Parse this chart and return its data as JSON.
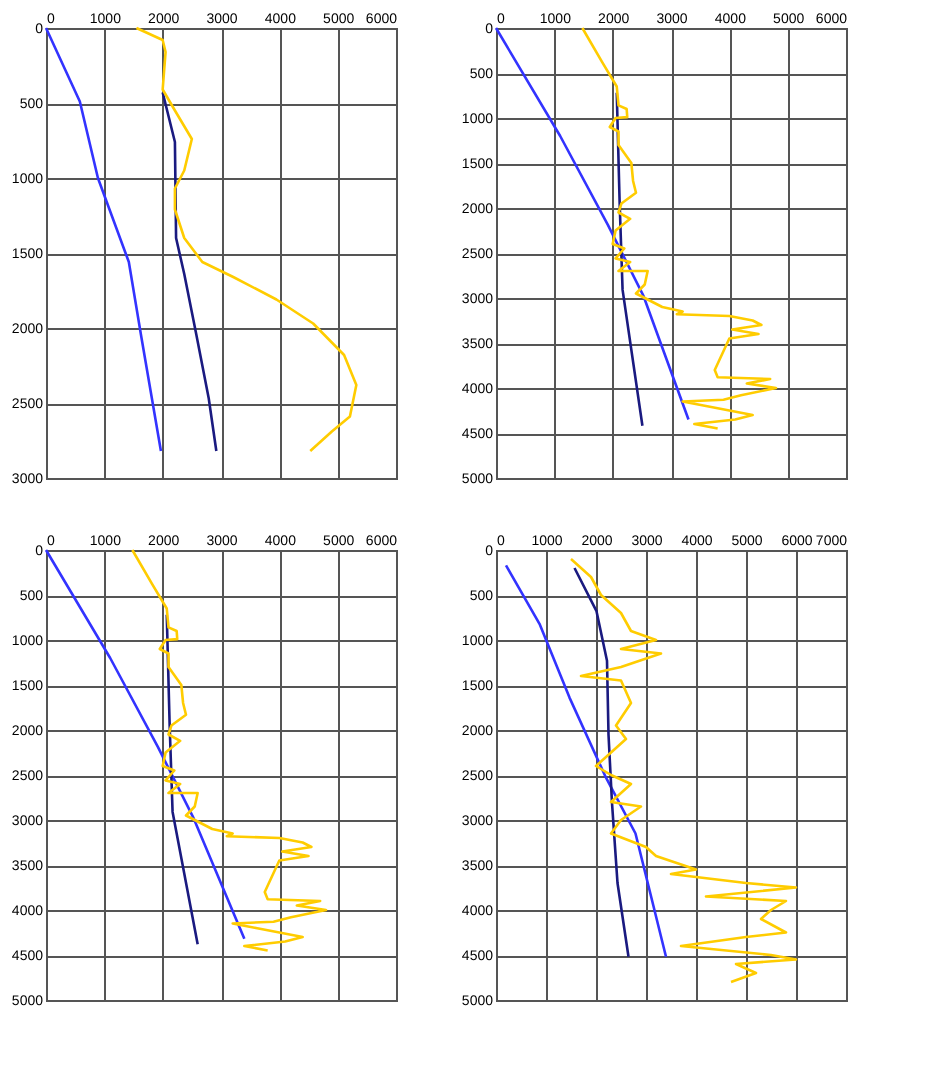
{
  "chart_data": [
    {
      "type": "line",
      "xlim": [
        0,
        6000
      ],
      "ylim": [
        3000,
        0
      ],
      "xticks": [
        0,
        1000,
        2000,
        3000,
        4000,
        5000,
        6000
      ],
      "yticks": [
        0,
        500,
        1000,
        1500,
        2000,
        2500,
        3000
      ],
      "grid": true,
      "series": [
        {
          "color": "#3333ff",
          "x": [
            0,
            580,
            890,
            1420,
            1630,
            1970
          ],
          "values": [
            0,
            490,
            1000,
            1560,
            2050,
            2820
          ]
        },
        {
          "color": "#1a1a80",
          "x": [
            2000,
            2210,
            2230,
            2370,
            2580,
            2790,
            2920
          ],
          "values": [
            430,
            760,
            1400,
            1640,
            2050,
            2470,
            2820
          ]
        },
        {
          "color": "#ffcc00",
          "x": [
            1550,
            2000,
            2050,
            2000,
            2210,
            2500,
            2370,
            2210,
            2210,
            2370,
            2680,
            3210,
            3950,
            4580,
            5110,
            5320,
            5210,
            4900,
            4530
          ],
          "values": [
            0,
            80,
            160,
            410,
            550,
            740,
            950,
            1070,
            1210,
            1400,
            1560,
            1660,
            1810,
            1970,
            2180,
            2380,
            2590,
            2690,
            2820
          ]
        }
      ]
    },
    {
      "type": "line",
      "xlim": [
        0,
        6000
      ],
      "ylim": [
        5000,
        0
      ],
      "xticks": [
        0,
        1000,
        2000,
        3000,
        4000,
        5000,
        6000
      ],
      "yticks": [
        0,
        500,
        1000,
        1500,
        2000,
        2500,
        3000,
        3500,
        4000,
        4500,
        5000
      ],
      "grid": true,
      "series": [
        {
          "color": "#3333ff",
          "x": [
            0,
            1100,
            1920,
            2530,
            3300
          ],
          "values": [
            0,
            1200,
            2190,
            2980,
            4350
          ]
        },
        {
          "color": "#1a1a80",
          "x": [
            2070,
            2120,
            2170,
            2510
          ],
          "values": [
            720,
            1950,
            2910,
            4420
          ]
        },
        {
          "color": "#ffcc00",
          "x": [
            1480,
            1820,
            2070,
            2100,
            2240,
            2250,
            2050,
            1950,
            2100,
            2100,
            2320,
            2350,
            2400,
            2150,
            2100,
            2300,
            2050,
            2000,
            2200,
            2050,
            2300,
            2100,
            2600,
            2550,
            2400,
            2850,
            3200,
            3100,
            4000,
            4400,
            4550,
            4050,
            4500,
            4000,
            3750,
            3800,
            4700,
            4300,
            4800,
            4200,
            3900,
            3200,
            3600,
            4400,
            4100,
            3400,
            3800
          ],
          "values": [
            0,
            380,
            650,
            860,
            900,
            990,
            1000,
            1100,
            1150,
            1300,
            1500,
            1700,
            1830,
            1950,
            2050,
            2120,
            2250,
            2400,
            2450,
            2560,
            2600,
            2700,
            2700,
            2850,
            2950,
            3100,
            3150,
            3180,
            3200,
            3250,
            3300,
            3350,
            3400,
            3450,
            3800,
            3880,
            3900,
            3950,
            4000,
            4080,
            4130,
            4150,
            4200,
            4300,
            4350,
            4400,
            4450
          ]
        }
      ]
    },
    {
      "type": "line",
      "xlim": [
        0,
        6000
      ],
      "ylim": [
        5000,
        0
      ],
      "xticks": [
        0,
        1000,
        2000,
        3000,
        4000,
        5000,
        6000
      ],
      "yticks": [
        0,
        500,
        1000,
        1500,
        2000,
        2500,
        3000,
        3500,
        4000,
        4500,
        5000
      ],
      "grid": true,
      "series": [
        {
          "color": "#3333ff",
          "x": [
            0,
            1100,
            1920,
            2530,
            3400
          ],
          "values": [
            0,
            1200,
            2190,
            2980,
            4320
          ]
        },
        {
          "color": "#1a1a80",
          "x": [
            2070,
            2120,
            2170,
            2600
          ],
          "values": [
            720,
            1950,
            2910,
            4380
          ]
        },
        {
          "color": "#ffcc00",
          "x": [
            1480,
            1820,
            2070,
            2100,
            2240,
            2250,
            2050,
            1950,
            2100,
            2100,
            2320,
            2350,
            2400,
            2150,
            2100,
            2300,
            2050,
            2000,
            2200,
            2050,
            2300,
            2100,
            2600,
            2550,
            2400,
            2850,
            3200,
            3100,
            4000,
            4400,
            4550,
            4050,
            4500,
            4000,
            3750,
            3800,
            4700,
            4300,
            4800,
            4200,
            3900,
            3200,
            3600,
            4400,
            4100,
            3400,
            3800
          ],
          "values": [
            0,
            380,
            650,
            860,
            900,
            990,
            1000,
            1100,
            1150,
            1300,
            1500,
            1700,
            1830,
            1950,
            2050,
            2120,
            2250,
            2400,
            2450,
            2560,
            2600,
            2700,
            2700,
            2850,
            2950,
            3100,
            3150,
            3180,
            3200,
            3250,
            3300,
            3350,
            3400,
            3450,
            3800,
            3880,
            3900,
            3950,
            4000,
            4080,
            4130,
            4150,
            4200,
            4300,
            4350,
            4400,
            4450
          ]
        }
      ]
    },
    {
      "type": "line",
      "xlim": [
        0,
        7000
      ],
      "ylim": [
        5000,
        0
      ],
      "xticks": [
        0,
        1000,
        2000,
        3000,
        4000,
        5000,
        6000,
        7000
      ],
      "yticks": [
        0,
        500,
        1000,
        1500,
        2000,
        2500,
        3000,
        3500,
        4000,
        4500,
        5000
      ],
      "grid": true,
      "series": [
        {
          "color": "#3333ff",
          "x": [
            200,
            870,
            1470,
            2200,
            2790,
            3400
          ],
          "values": [
            170,
            820,
            1640,
            2530,
            3150,
            4520
          ]
        },
        {
          "color": "#1a1a80",
          "x": [
            1570,
            2010,
            2220,
            2250,
            2320,
            2430,
            2650
          ],
          "values": [
            200,
            680,
            1230,
            2050,
            2810,
            3700,
            4520
          ]
        },
        {
          "color": "#ffcc00",
          "x": [
            1500,
            1900,
            2100,
            2500,
            2700,
            3200,
            2500,
            3300,
            2500,
            1700,
            2500,
            2700,
            2400,
            2600,
            2200,
            2000,
            2300,
            2700,
            2300,
            2900,
            2500,
            2300,
            3000,
            3200,
            4000,
            3500,
            5000,
            6000,
            4200,
            5800,
            5500,
            5300,
            5800,
            5000,
            3700,
            5500,
            6000,
            4800,
            5200,
            4700
          ],
          "values": [
            100,
            300,
            500,
            700,
            900,
            1000,
            1100,
            1150,
            1300,
            1400,
            1450,
            1700,
            1950,
            2100,
            2300,
            2400,
            2500,
            2600,
            2800,
            2850,
            3000,
            3150,
            3300,
            3400,
            3550,
            3600,
            3700,
            3750,
            3850,
            3900,
            4000,
            4100,
            4250,
            4300,
            4400,
            4500,
            4550,
            4600,
            4700,
            4800
          ]
        }
      ]
    }
  ]
}
